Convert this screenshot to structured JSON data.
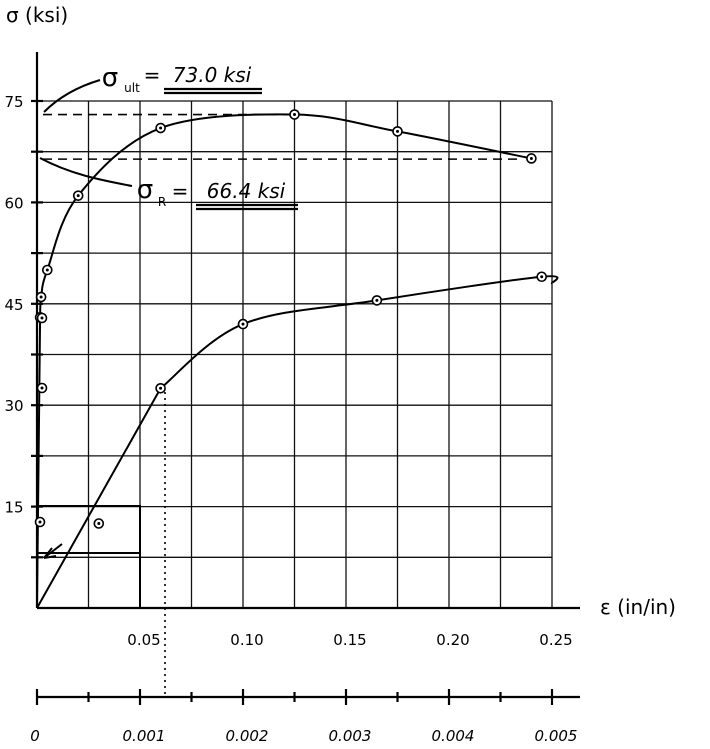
{
  "chart_data": [
    {
      "type": "line",
      "ylabel": "σ (ksi)",
      "xlabel": "ε (in/in)",
      "y_ticks": [
        "15",
        "30",
        "45",
        "60",
        "75"
      ],
      "x_ticks_upper": [
        "0.05",
        "0.10",
        "0.15",
        "0.20",
        "0.25"
      ],
      "x_ticks_lower": [
        "0",
        "0.001",
        "0.002",
        "0.003",
        "0.004",
        "0.005"
      ],
      "upper_scale_range": [
        0,
        0.25
      ],
      "lower_scale_range": [
        0,
        0.005
      ],
      "ylim": [
        0,
        75
      ],
      "grid": true,
      "annotations": {
        "ult_symbol": "σ",
        "ult_sub": "ult",
        "ult_eq": "=",
        "ult_value": "73.0 ksi",
        "r_symbol": "σ",
        "r_sub": "R",
        "r_eq": "=",
        "r_value": "66.4 ksi"
      },
      "reference_lines": {
        "sigma_ult": 73.0,
        "sigma_r": 66.4
      },
      "series": [
        {
          "scale": "upper",
          "points": [
            [
              0,
              0
            ],
            [
              0.0015,
              43
            ],
            [
              0.002,
              46
            ],
            [
              0.005,
              50
            ],
            [
              0.02,
              61
            ],
            [
              0.06,
              71
            ],
            [
              0.125,
              73
            ],
            [
              0.175,
              70.5
            ],
            [
              0.24,
              66.5
            ]
          ]
        },
        {
          "scale": "lower",
          "points": [
            [
              0,
              0
            ],
            [
              0.0006,
              12.5
            ],
            [
              0.0012,
              32.5
            ],
            [
              0.002,
              42
            ],
            [
              0.0033,
              45.5
            ],
            [
              0.0049,
              49
            ]
          ]
        }
      ]
    }
  ]
}
